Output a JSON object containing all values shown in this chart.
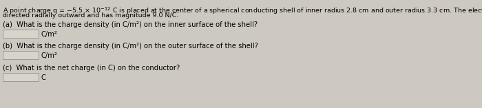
{
  "background_color": "#cdc9c0",
  "title_line1": "A point charge q = −5.5 × 10⁻¹² C is placed at the center of a spherical conducting shell of inner radius 2.8 cm and outer radius 3.3 cm. The electric field just above the surface of the conductor is",
  "title_line2": "directed radially outward and has magnitude 9.0 N/C.",
  "part_a_text": "(a)  What is the charge density (in C/m²) on the inner surface of the shell?",
  "part_a_unit": "C/m²",
  "part_b_text": "(b)  What is the charge density (in C/m²) on the outer surface of the shell?",
  "part_b_unit": "C/m²",
  "part_c_text": "(c)  What is the net charge (in C) on the conductor?",
  "part_c_unit": "C",
  "text_color": "#000000",
  "font_size_title": 6.8,
  "font_size_body": 7.2,
  "box_facecolor": "#d8d4cb",
  "box_edgecolor": "#999999"
}
